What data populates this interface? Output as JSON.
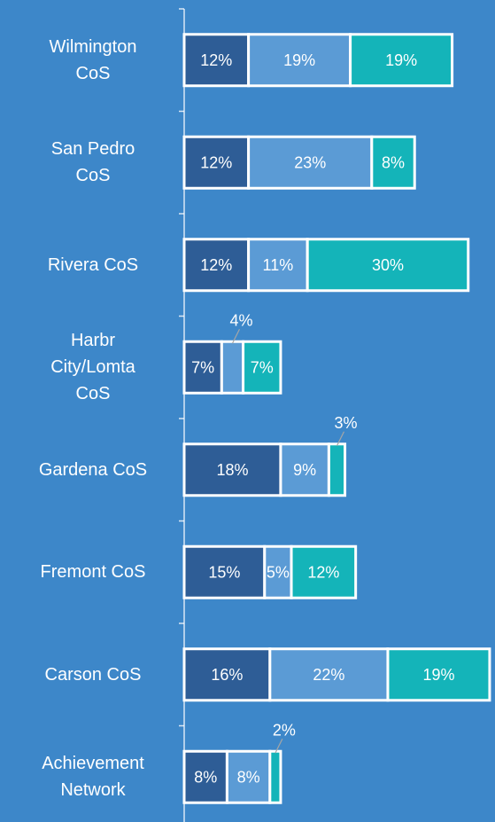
{
  "chart_data": {
    "type": "stacked-bar-horizontal",
    "categories": [
      "Wilmington CoS",
      "San Pedro CoS",
      "Rivera CoS",
      "Harbr City/Lomta CoS",
      "Gardena CoS",
      "Fremont CoS",
      "Carson CoS",
      "Achievement Network"
    ],
    "series": [
      {
        "color": "#2e5d96",
        "values": [
          12,
          12,
          12,
          7,
          18,
          15,
          16,
          8
        ],
        "value_labels": [
          "12%",
          "12%",
          "12%",
          "7%",
          "18%",
          "15%",
          "16%",
          "8%"
        ]
      },
      {
        "color": "#5b9bd5",
        "values": [
          19,
          23,
          11,
          4,
          9,
          5,
          22,
          8
        ],
        "value_labels": [
          "19%",
          "23%",
          "11%",
          "4%",
          "9%",
          "5%",
          "22%",
          "8%"
        ]
      },
      {
        "color": "#14b4b9",
        "values": [
          19,
          8,
          30,
          7,
          3,
          12,
          19,
          2
        ],
        "value_labels": [
          "19%",
          "8%",
          "30%",
          "7%",
          "3%",
          "12%",
          "19%",
          "2%"
        ]
      }
    ],
    "xlim": [
      0,
      58
    ]
  }
}
